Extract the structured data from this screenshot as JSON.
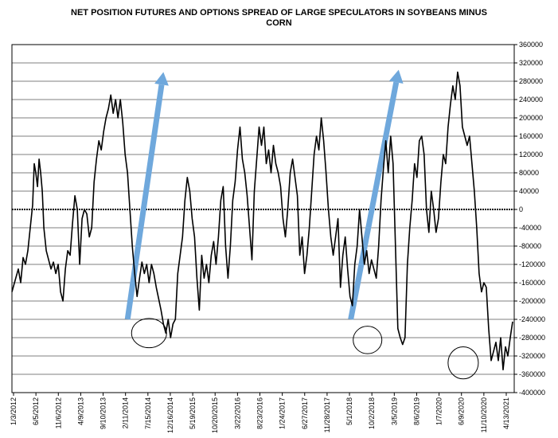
{
  "chart_data": {
    "type": "line",
    "title_line1": "NET POSITION FUTURES AND OPTIONS SPREAD OF LARGE SPECULATORS IN SOYBEANS MINUS",
    "title_line2": "CORN",
    "xlabel": "",
    "ylabel": "",
    "ylim": [
      -400000,
      360000
    ],
    "y_ticks": [
      360000,
      320000,
      280000,
      240000,
      200000,
      160000,
      120000,
      80000,
      40000,
      0,
      -40000,
      -80000,
      -120000,
      -160000,
      -200000,
      -240000,
      -280000,
      -320000,
      -360000,
      -400000
    ],
    "y_tick_labels": [
      "360000",
      "320000",
      "280000",
      "240000",
      "200000",
      "160000",
      "120000",
      "80000",
      "40000",
      "0",
      "-40000",
      "-80000",
      "-120000",
      "-160000",
      "-200000",
      "-240000",
      "-280000",
      "-320000",
      "-360000",
      "-400000"
    ],
    "x_tick_labels": [
      "1/3/2012",
      "6/5/2012",
      "11/6/2012",
      "4/9/2013",
      "9/10/2013",
      "2/11/2014",
      "7/15/2014",
      "12/16/2014",
      "5/19/2015",
      "10/20/2015",
      "3/22/2016",
      "8/23/2016",
      "1/24/2017",
      "6/27/2017",
      "11/28/2017",
      "5/1/2018",
      "10/2/2018",
      "3/5/2019",
      "8/6/2019",
      "1/7/2020",
      "6/9/2020",
      "11/10/2020",
      "4/13/2021"
    ],
    "grid": true,
    "series": [
      {
        "values": [
          [
            0.0,
            -180000
          ],
          [
            0.4,
            -155000
          ],
          [
            0.8,
            -130000
          ],
          [
            1.1,
            -160000
          ],
          [
            1.4,
            -105000
          ],
          [
            1.7,
            -120000
          ],
          [
            2.0,
            -90000
          ],
          [
            2.3,
            -40000
          ],
          [
            2.6,
            10000
          ],
          [
            2.8,
            100000
          ],
          [
            3.0,
            80000
          ],
          [
            3.2,
            50000
          ],
          [
            3.4,
            110000
          ],
          [
            3.6,
            80000
          ],
          [
            3.8,
            40000
          ],
          [
            4.0,
            -40000
          ],
          [
            4.3,
            -90000
          ],
          [
            4.6,
            -110000
          ],
          [
            4.9,
            -130000
          ],
          [
            5.2,
            -115000
          ],
          [
            5.5,
            -140000
          ],
          [
            5.8,
            -120000
          ],
          [
            6.1,
            -180000
          ],
          [
            6.4,
            -200000
          ],
          [
            6.7,
            -130000
          ],
          [
            7.0,
            -90000
          ],
          [
            7.3,
            -100000
          ],
          [
            7.6,
            -30000
          ],
          [
            7.9,
            30000
          ],
          [
            8.2,
            0
          ],
          [
            8.5,
            -120000
          ],
          [
            8.8,
            -20000
          ],
          [
            9.1,
            0
          ],
          [
            9.4,
            -10000
          ],
          [
            9.7,
            -60000
          ],
          [
            10.0,
            -40000
          ],
          [
            10.3,
            60000
          ],
          [
            10.6,
            110000
          ],
          [
            10.9,
            150000
          ],
          [
            11.2,
            130000
          ],
          [
            11.5,
            170000
          ],
          [
            11.8,
            200000
          ],
          [
            12.1,
            220000
          ],
          [
            12.4,
            250000
          ],
          [
            12.7,
            210000
          ],
          [
            13.0,
            240000
          ],
          [
            13.3,
            200000
          ],
          [
            13.6,
            240000
          ],
          [
            13.9,
            190000
          ],
          [
            14.2,
            120000
          ],
          [
            14.5,
            80000
          ],
          [
            14.8,
            0
          ],
          [
            15.1,
            -80000
          ],
          [
            15.4,
            -140000
          ],
          [
            15.7,
            -190000
          ],
          [
            16.0,
            -150000
          ],
          [
            16.3,
            -115000
          ],
          [
            16.6,
            -140000
          ],
          [
            16.9,
            -120000
          ],
          [
            17.2,
            -160000
          ],
          [
            17.5,
            -120000
          ],
          [
            17.8,
            -140000
          ],
          [
            18.1,
            -170000
          ],
          [
            18.4,
            -195000
          ],
          [
            18.7,
            -220000
          ],
          [
            19.0,
            -250000
          ],
          [
            19.3,
            -270000
          ],
          [
            19.6,
            -240000
          ],
          [
            19.9,
            -280000
          ],
          [
            20.2,
            -250000
          ],
          [
            20.5,
            -240000
          ],
          [
            20.8,
            -140000
          ],
          [
            21.1,
            -100000
          ],
          [
            21.4,
            -60000
          ],
          [
            21.7,
            20000
          ],
          [
            22.0,
            70000
          ],
          [
            22.3,
            40000
          ],
          [
            22.6,
            -20000
          ],
          [
            22.9,
            -60000
          ],
          [
            23.2,
            -150000
          ],
          [
            23.5,
            -220000
          ],
          [
            23.8,
            -100000
          ],
          [
            24.1,
            -150000
          ],
          [
            24.4,
            -120000
          ],
          [
            24.7,
            -160000
          ],
          [
            25.0,
            -100000
          ],
          [
            25.3,
            -70000
          ],
          [
            25.6,
            -120000
          ],
          [
            25.9,
            -60000
          ],
          [
            26.2,
            20000
          ],
          [
            26.5,
            50000
          ],
          [
            26.8,
            -80000
          ],
          [
            27.1,
            -150000
          ],
          [
            27.4,
            -80000
          ],
          [
            27.7,
            20000
          ],
          [
            28.0,
            60000
          ],
          [
            28.3,
            130000
          ],
          [
            28.6,
            180000
          ],
          [
            28.9,
            110000
          ],
          [
            29.2,
            80000
          ],
          [
            29.5,
            30000
          ],
          [
            29.8,
            -40000
          ],
          [
            30.1,
            -110000
          ],
          [
            30.4,
            40000
          ],
          [
            30.7,
            110000
          ],
          [
            31.0,
            180000
          ],
          [
            31.3,
            140000
          ],
          [
            31.6,
            180000
          ],
          [
            31.9,
            100000
          ],
          [
            32.2,
            130000
          ],
          [
            32.5,
            80000
          ],
          [
            32.8,
            140000
          ],
          [
            33.1,
            100000
          ],
          [
            33.4,
            80000
          ],
          [
            33.7,
            50000
          ],
          [
            34.0,
            -20000
          ],
          [
            34.3,
            -60000
          ],
          [
            34.6,
            0
          ],
          [
            34.9,
            80000
          ],
          [
            35.2,
            110000
          ],
          [
            35.5,
            70000
          ],
          [
            35.8,
            30000
          ],
          [
            36.1,
            -100000
          ],
          [
            36.4,
            -60000
          ],
          [
            36.7,
            -140000
          ],
          [
            37.0,
            -100000
          ],
          [
            37.3,
            -40000
          ],
          [
            37.6,
            40000
          ],
          [
            37.9,
            120000
          ],
          [
            38.2,
            160000
          ],
          [
            38.5,
            130000
          ],
          [
            38.8,
            200000
          ],
          [
            39.1,
            150000
          ],
          [
            39.4,
            80000
          ],
          [
            39.7,
            0
          ],
          [
            40.0,
            -60000
          ],
          [
            40.3,
            -100000
          ],
          [
            40.6,
            -60000
          ],
          [
            40.9,
            -20000
          ],
          [
            41.2,
            -170000
          ],
          [
            41.5,
            -100000
          ],
          [
            41.8,
            -60000
          ],
          [
            42.1,
            -130000
          ],
          [
            42.4,
            -190000
          ],
          [
            42.7,
            -210000
          ],
          [
            43.0,
            -120000
          ],
          [
            43.3,
            -80000
          ],
          [
            43.6,
            0
          ],
          [
            43.9,
            -60000
          ],
          [
            44.2,
            -120000
          ],
          [
            44.5,
            -90000
          ],
          [
            44.8,
            -140000
          ],
          [
            45.1,
            -110000
          ],
          [
            45.4,
            -130000
          ],
          [
            45.7,
            -150000
          ],
          [
            46.0,
            -80000
          ],
          [
            46.3,
            20000
          ],
          [
            46.6,
            90000
          ],
          [
            46.9,
            150000
          ],
          [
            47.2,
            80000
          ],
          [
            47.5,
            160000
          ],
          [
            47.8,
            100000
          ],
          [
            48.1,
            -80000
          ],
          [
            48.4,
            -260000
          ],
          [
            48.7,
            -280000
          ],
          [
            49.0,
            -295000
          ],
          [
            49.3,
            -280000
          ],
          [
            49.6,
            -120000
          ],
          [
            49.9,
            -40000
          ],
          [
            50.2,
            20000
          ],
          [
            50.5,
            100000
          ],
          [
            50.8,
            70000
          ],
          [
            51.1,
            150000
          ],
          [
            51.4,
            160000
          ],
          [
            51.7,
            120000
          ],
          [
            52.0,
            0
          ],
          [
            52.3,
            -50000
          ],
          [
            52.6,
            40000
          ],
          [
            52.9,
            0
          ],
          [
            53.2,
            -50000
          ],
          [
            53.5,
            -20000
          ],
          [
            53.8,
            60000
          ],
          [
            54.1,
            120000
          ],
          [
            54.4,
            100000
          ],
          [
            54.7,
            180000
          ],
          [
            55.0,
            230000
          ],
          [
            55.3,
            270000
          ],
          [
            55.6,
            240000
          ],
          [
            55.9,
            300000
          ],
          [
            56.2,
            270000
          ],
          [
            56.5,
            180000
          ],
          [
            56.8,
            160000
          ],
          [
            57.1,
            140000
          ],
          [
            57.4,
            160000
          ],
          [
            57.7,
            100000
          ],
          [
            58.0,
            40000
          ],
          [
            58.3,
            -40000
          ],
          [
            58.6,
            -140000
          ],
          [
            58.9,
            -180000
          ],
          [
            59.2,
            -160000
          ],
          [
            59.5,
            -170000
          ],
          [
            59.8,
            -260000
          ],
          [
            60.1,
            -330000
          ],
          [
            60.4,
            -310000
          ],
          [
            60.7,
            -290000
          ],
          [
            61.0,
            -330000
          ],
          [
            61.3,
            -280000
          ],
          [
            61.6,
            -350000
          ],
          [
            61.9,
            -300000
          ],
          [
            62.2,
            -320000
          ],
          [
            62.5,
            -280000
          ],
          [
            62.8,
            -245000
          ]
        ]
      }
    ],
    "annotations": {
      "arrows": [
        {
          "from": [
            14.5,
            -240000
          ],
          "to": [
            19.0,
            300000
          ]
        },
        {
          "from": [
            42.5,
            -240000
          ],
          "to": [
            48.5,
            305000
          ]
        }
      ],
      "circles": [
        {
          "center": [
            17.2,
            -270000
          ],
          "rx_weeks": 2.2,
          "ry_value": 32000
        },
        {
          "center": [
            44.6,
            -285000
          ],
          "rx_weeks": 1.8,
          "ry_value": 30000
        },
        {
          "center": [
            56.6,
            -335000
          ],
          "rx_weeks": 1.9,
          "ry_value": 35000
        }
      ]
    },
    "colors": {
      "line": "#000000",
      "arrow": "#6fa8dc",
      "zero_line": "#000000",
      "grid": "#000000"
    }
  }
}
